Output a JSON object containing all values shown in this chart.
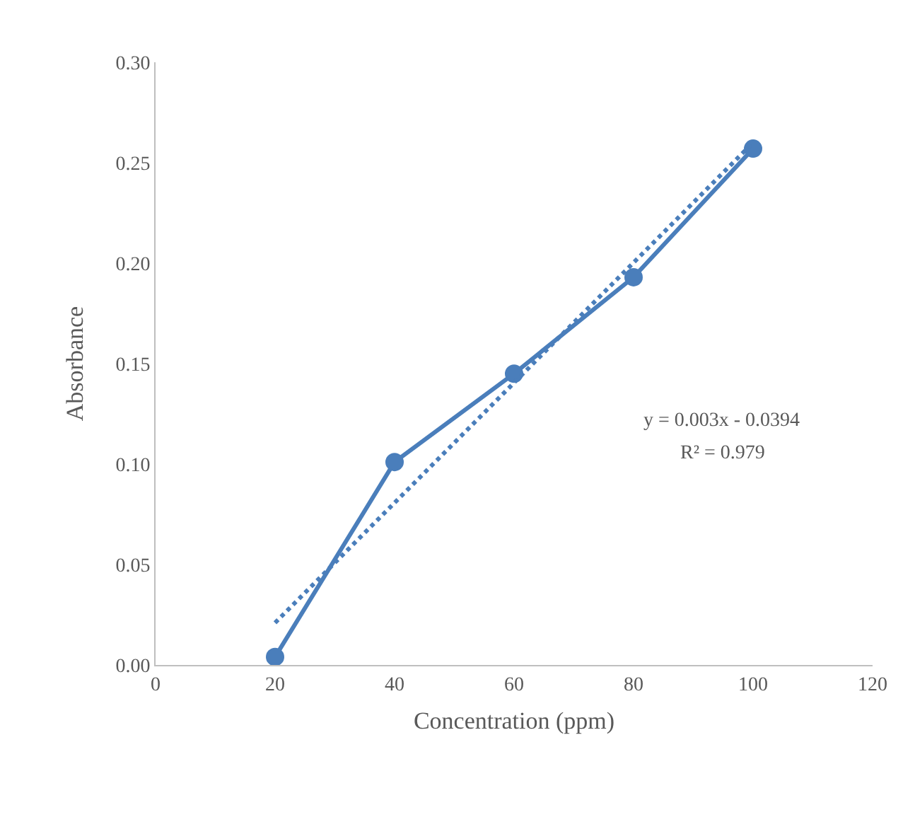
{
  "chart_data": {
    "type": "line",
    "xlabel": "Concentration (ppm)",
    "ylabel": "Absorbance",
    "x": [
      20,
      40,
      60,
      80,
      100
    ],
    "series": [
      {
        "color": "#4a7ebb",
        "values": [
          0.004,
          0.101,
          0.145,
          0.193,
          0.257
        ],
        "marker": "circle",
        "line_style": "solid"
      },
      {
        "color": "#4a7ebb",
        "x": [
          20,
          100
        ],
        "values": [
          0.021,
          0.26
        ],
        "marker": "none",
        "line_style": "dotted"
      }
    ],
    "xlim": [
      0,
      120
    ],
    "xticks": [
      0,
      20,
      40,
      60,
      80,
      100,
      120
    ],
    "ylim": [
      0,
      0.3
    ],
    "yticks": [
      {
        "value": 0,
        "label": "0.00"
      },
      {
        "value": 0.05,
        "label": "0.05"
      },
      {
        "value": 0.1,
        "label": "0.10"
      },
      {
        "value": 0.15,
        "label": "0.15"
      },
      {
        "value": 0.2,
        "label": "0.20"
      },
      {
        "value": 0.25,
        "label": "0.25"
      },
      {
        "value": 0.3,
        "label": "0.30"
      }
    ],
    "annotations": [
      "y = 0.003x - 0.0394",
      "R² = 0.979"
    ],
    "grid": false
  }
}
